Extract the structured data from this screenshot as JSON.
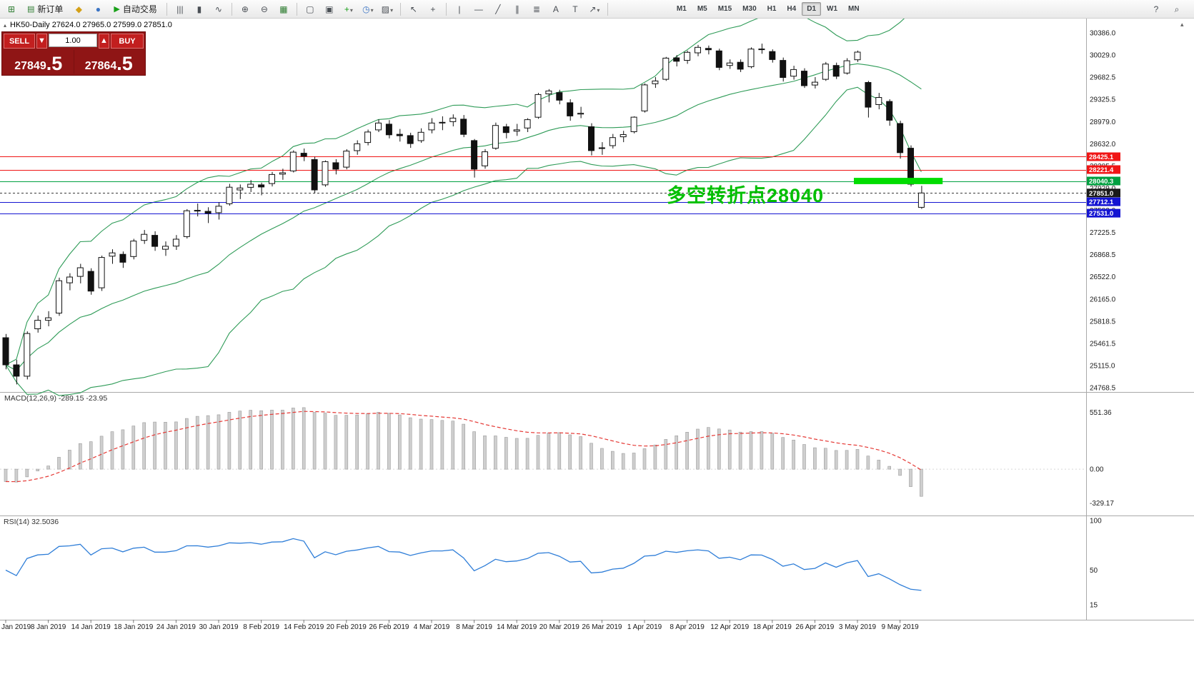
{
  "toolbar": {
    "items": [
      {
        "name": "new-chart-icon",
        "glyph": "⊞",
        "color": "#2f7d32"
      },
      {
        "name": "new-order-button",
        "glyph": "▤",
        "glyph_color": "#2f7d32",
        "label": "新订单"
      },
      {
        "name": "metaeditor-icon",
        "glyph": "◆",
        "color": "#d4a017"
      },
      {
        "name": "community-icon",
        "glyph": "●",
        "color": "#3b74c4"
      },
      {
        "name": "autotrading-button",
        "glyph": "▶",
        "glyph_color": "#18a018",
        "label": "自动交易"
      },
      {
        "sep": true
      },
      {
        "name": "ohlc-bars-icon",
        "glyph": "|||"
      },
      {
        "name": "candlestick-chart-icon",
        "glyph": "▮"
      },
      {
        "name": "line-chart-icon",
        "glyph": "∿"
      },
      {
        "sep": true
      },
      {
        "name": "zoom-in-icon",
        "glyph": "⊕"
      },
      {
        "name": "zoom-out-icon",
        "glyph": "⊖"
      },
      {
        "name": "tile-grid-icon",
        "glyph": "▦",
        "color": "#2f7d32"
      },
      {
        "sep": true
      },
      {
        "name": "tile-windows-icon",
        "glyph": "▢"
      },
      {
        "name": "cascade-windows-icon",
        "glyph": "▣"
      },
      {
        "name": "indicators-button",
        "glyph": "+",
        "color": "#18a018",
        "dropdown": true
      },
      {
        "name": "periods-button",
        "glyph": "◷",
        "color": "#3b74c4",
        "dropdown": true
      },
      {
        "name": "templates-button",
        "glyph": "▨",
        "dropdown": true
      },
      {
        "sep": true
      },
      {
        "name": "cursor-icon",
        "glyph": "↖"
      },
      {
        "name": "crosshair-icon",
        "glyph": "+"
      },
      {
        "sep": true
      },
      {
        "name": "vertical-line-icon",
        "glyph": "|"
      },
      {
        "name": "horizontal-line-icon",
        "glyph": "—"
      },
      {
        "name": "trendline-icon",
        "glyph": "╱"
      },
      {
        "name": "channel-icon",
        "glyph": "∥"
      },
      {
        "name": "fibonacci-icon",
        "glyph": "≣"
      },
      {
        "name": "text-icon",
        "glyph": "A"
      },
      {
        "name": "label-icon",
        "glyph": "T"
      },
      {
        "name": "shapes-button",
        "glyph": "↗",
        "dropdown": true
      },
      {
        "sep": true
      }
    ],
    "timeframes": [
      "M1",
      "M5",
      "M15",
      "M30",
      "H1",
      "H4",
      "D1",
      "W1",
      "MN"
    ],
    "active_timeframe": "D1",
    "right_items": [
      {
        "name": "help-icon",
        "glyph": "?"
      },
      {
        "name": "search-icon",
        "glyph": "⌕"
      }
    ]
  },
  "symbol_bar": {
    "collapse_glyph": "▴",
    "text": "HK50-Daily  27624.0 27965.0 27599.0 27851.0"
  },
  "trade_panel": {
    "sell_label": "SELL",
    "buy_label": "BUY",
    "volume": "1.00",
    "volume_down_glyph": "▼",
    "volume_up_glyph": "▲",
    "sell_price_int": "27849",
    "sell_price_frac": ".5",
    "buy_price_int": "27864",
    "buy_price_frac": ".5"
  },
  "panel_labels": {
    "macd": "MACD(12,26,9) -289.15 -23.95",
    "rsi": "RSI(14) 32.5036"
  },
  "collapse_chevron_glyph": "▴",
  "chart_data": {
    "type": "candlestick",
    "symbol": "HK50",
    "timeframe": "Daily",
    "last_ohlc": {
      "open": 27624.0,
      "high": 27965.0,
      "low": 27599.0,
      "close": 27851.0
    },
    "y_axis_ticks": [
      "30386.0",
      "30029.0",
      "29682.5",
      "29325.5",
      "28979.0",
      "28632.0",
      "28285.5",
      "27929.0",
      "27582.0",
      "27225.5",
      "26868.5",
      "26522.0",
      "26165.0",
      "25818.5",
      "25461.5",
      "25115.0",
      "24768.5"
    ],
    "x_axis_labels": [
      "Jan 2019",
      "8 Jan 2019",
      "14 Jan 2019",
      "18 Jan 2019",
      "24 Jan 2019",
      "30 Jan 2019",
      "8 Feb 2019",
      "14 Feb 2019",
      "20 Feb 2019",
      "26 Feb 2019",
      "4 Mar 2019",
      "8 Mar 2019",
      "14 Mar 2019",
      "20 Mar 2019",
      "26 Mar 2019",
      "1 Apr 2019",
      "8 Apr 2019",
      "12 Apr 2019",
      "18 Apr 2019",
      "26 Apr 2019",
      "3 May 2019",
      "9 May 2019"
    ],
    "x_label_every_n_candles": 4,
    "candles": [
      [
        25560,
        25620,
        25060,
        25130
      ],
      [
        25130,
        25210,
        24820,
        24950
      ],
      [
        24950,
        25660,
        24900,
        25626
      ],
      [
        25700,
        25910,
        25640,
        25835
      ],
      [
        25835,
        25980,
        25740,
        25875
      ],
      [
        25950,
        26510,
        25905,
        26462
      ],
      [
        26430,
        26580,
        26310,
        26521
      ],
      [
        26530,
        26730,
        26420,
        26667
      ],
      [
        26610,
        26660,
        26240,
        26298
      ],
      [
        26350,
        26860,
        26300,
        26830
      ],
      [
        26850,
        26960,
        26730,
        26902
      ],
      [
        26880,
        26925,
        26665,
        26755
      ],
      [
        26845,
        27125,
        26800,
        27090
      ],
      [
        27100,
        27265,
        27045,
        27196
      ],
      [
        27180,
        27245,
        26935,
        27005
      ],
      [
        26960,
        27085,
        26855,
        27008
      ],
      [
        27010,
        27185,
        26950,
        27120
      ],
      [
        27160,
        27595,
        27130,
        27569
      ],
      [
        27570,
        27685,
        27480,
        27576
      ],
      [
        27560,
        27625,
        27375,
        27531
      ],
      [
        27540,
        27705,
        27430,
        27642
      ],
      [
        27680,
        27995,
        27650,
        27942
      ],
      [
        27900,
        27985,
        27755,
        27930
      ],
      [
        27940,
        28055,
        27865,
        27990
      ],
      [
        27980,
        28015,
        27815,
        27946
      ],
      [
        28000,
        28185,
        27955,
        28143
      ],
      [
        28150,
        28235,
        28060,
        28171
      ],
      [
        28200,
        28525,
        28175,
        28497
      ],
      [
        28480,
        28555,
        28355,
        28432
      ],
      [
        28380,
        28425,
        27845,
        27900
      ],
      [
        27980,
        28365,
        27950,
        28347
      ],
      [
        28330,
        28385,
        28145,
        28228
      ],
      [
        28260,
        28545,
        28225,
        28514
      ],
      [
        28520,
        28685,
        28455,
        28629
      ],
      [
        28650,
        28855,
        28605,
        28816
      ],
      [
        28850,
        29015,
        28815,
        28959
      ],
      [
        28940,
        29005,
        28715,
        28772
      ],
      [
        28780,
        28865,
        28665,
        28757
      ],
      [
        28760,
        28805,
        28565,
        28633
      ],
      [
        28680,
        28875,
        28645,
        28812
      ],
      [
        28850,
        29035,
        28795,
        28959
      ],
      [
        28970,
        29065,
        28845,
        28961
      ],
      [
        28980,
        29095,
        28905,
        29037
      ],
      [
        29020,
        29085,
        28735,
        28779
      ],
      [
        28680,
        28705,
        28095,
        28228
      ],
      [
        28280,
        28545,
        28235,
        28503
      ],
      [
        28560,
        28965,
        28535,
        28920
      ],
      [
        28900,
        28945,
        28715,
        28807
      ],
      [
        28830,
        28945,
        28755,
        28851
      ],
      [
        28880,
        29035,
        28815,
        29012
      ],
      [
        29050,
        29435,
        29025,
        29409
      ],
      [
        29420,
        29495,
        29285,
        29466
      ],
      [
        29440,
        29485,
        29255,
        29320
      ],
      [
        29280,
        29335,
        28995,
        29071
      ],
      [
        29100,
        29215,
        29035,
        29113
      ],
      [
        28900,
        28955,
        28445,
        28523
      ],
      [
        28560,
        28655,
        28455,
        28566
      ],
      [
        28600,
        28785,
        28555,
        28728
      ],
      [
        28740,
        28835,
        28655,
        28775
      ],
      [
        28820,
        29065,
        28795,
        29051
      ],
      [
        29150,
        29585,
        29125,
        29562
      ],
      [
        29580,
        29685,
        29515,
        29624
      ],
      [
        29650,
        30005,
        29625,
        29986
      ],
      [
        29990,
        30035,
        29855,
        29936
      ],
      [
        29950,
        30105,
        29895,
        30077
      ],
      [
        30070,
        30195,
        30015,
        30157
      ],
      [
        30140,
        30185,
        30045,
        30119
      ],
      [
        30100,
        30135,
        29795,
        29839
      ],
      [
        29870,
        29965,
        29815,
        29909
      ],
      [
        29920,
        29965,
        29765,
        29810
      ],
      [
        29850,
        30155,
        29825,
        30129
      ],
      [
        30130,
        30215,
        30055,
        30124
      ],
      [
        30090,
        30125,
        29915,
        29963
      ],
      [
        29950,
        29995,
        29615,
        29680
      ],
      [
        29700,
        29865,
        29645,
        29805
      ],
      [
        29780,
        29825,
        29515,
        29549
      ],
      [
        29560,
        29685,
        29505,
        29605
      ],
      [
        29650,
        29925,
        29625,
        29892
      ],
      [
        29870,
        29915,
        29655,
        29699
      ],
      [
        29750,
        29985,
        29725,
        29944
      ],
      [
        29960,
        30105,
        29925,
        30081
      ],
      [
        29600,
        29625,
        29045,
        29209
      ],
      [
        29250,
        29435,
        29175,
        29363
      ],
      [
        29300,
        29335,
        28915,
        29003
      ],
      [
        28950,
        28995,
        28395,
        28489
      ],
      [
        28560,
        28605,
        27955,
        27990
      ],
      [
        27624,
        27965,
        27599,
        27851
      ]
    ],
    "indicators": {
      "bollinger": {
        "period": 20,
        "deviation": 2,
        "color": "#2e9b57"
      },
      "macd": {
        "params": "12,26,9",
        "values": [
          -289.15,
          -23.95
        ],
        "axis_ticks": [
          "551.36",
          "0.00",
          "-329.17"
        ],
        "histogram_color": "#cfcfcf",
        "signal_color": "#e53935"
      },
      "rsi": {
        "period": 14,
        "value": 32.5036,
        "axis_ticks": [
          "100",
          "50",
          "15"
        ],
        "color": "#2f7ed8"
      }
    },
    "levels": [
      {
        "price": 28425.1,
        "color": "#f01515",
        "style": "solid"
      },
      {
        "price": 28221.4,
        "color": "#f01515",
        "style": "solid"
      },
      {
        "price": 28040.3,
        "color": "#00a040",
        "style": "solid"
      },
      {
        "price": 27851.0,
        "color": "#3a3a3a",
        "style": "dashed",
        "is_current_price": true
      },
      {
        "price": 27712.1,
        "color": "#1414d2",
        "style": "solid"
      },
      {
        "price": 27531.0,
        "color": "#1414d2",
        "style": "solid"
      }
    ],
    "highlight_bar": {
      "price_top": 28090,
      "price_bottom": 27990,
      "from_index": 80,
      "to_index": 88,
      "color": "#00dd00"
    },
    "annotation": {
      "text": "多空转折点28040",
      "color": "#00bf00"
    }
  }
}
